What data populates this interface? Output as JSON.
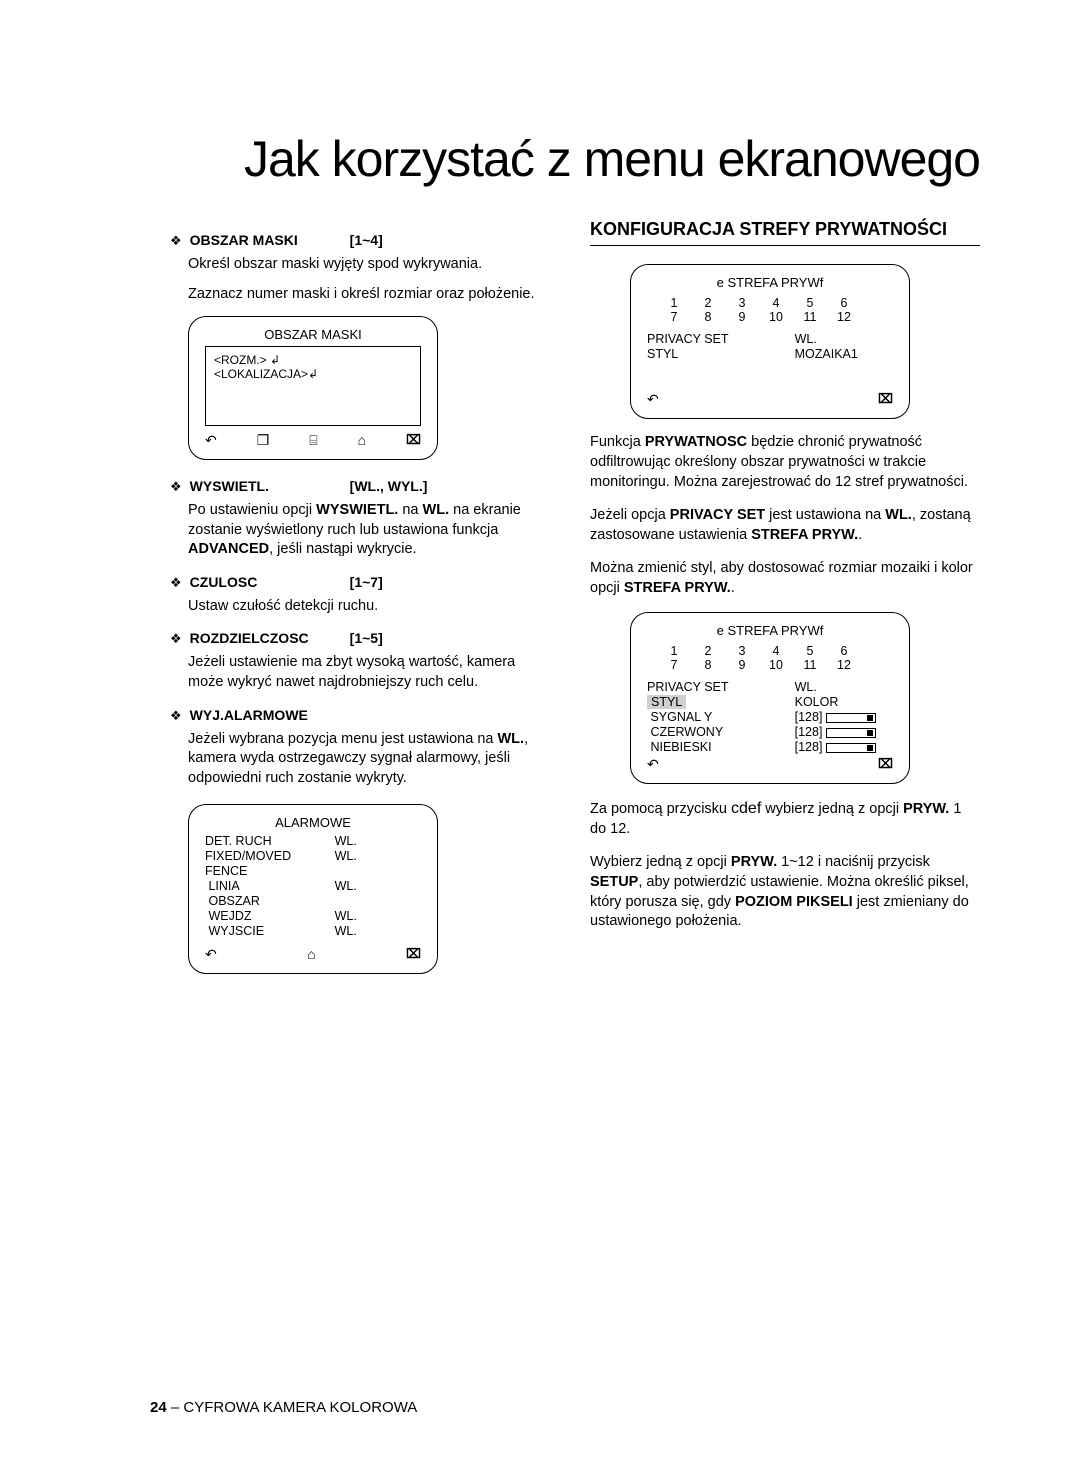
{
  "page_title": "Jak korzystać z menu ekranowego",
  "left": {
    "obszar_maski": {
      "label": "OBSZAR MASKI",
      "range": "[1~4]",
      "desc1": "Określ obszar maski wyjęty spod wykrywania.",
      "desc2": "Zaznacz numer maski i określ rozmiar oraz położenie."
    },
    "osd_mask": {
      "title": "OBSZAR MASKI",
      "line1": "<ROZM.> ↲",
      "line2": "<LOKALIZACJA>↲"
    },
    "wyswietl": {
      "label": "WYSWIETL.",
      "range": "[WL., WYL.]",
      "desc_a": "Po ustawieniu opcji ",
      "desc_bold1": "WYSWIETL.",
      "desc_mid1": " na ",
      "desc_bold2": "WL.",
      "desc_mid2": " na ekranie zostanie wyświetlony ruch lub ustawiona funkcja ",
      "desc_bold3": "ADVANCED",
      "desc_end": ", jeśli nastąpi wykrycie."
    },
    "czulosc": {
      "label": "CZULOSC",
      "range": "[1~7]",
      "desc": "Ustaw czułość detekcji ruchu."
    },
    "rozdz": {
      "label": "ROZDZIELCZOSC",
      "range": "[1~5]",
      "desc": "Jeżeli ustawienie ma zbyt wysoką wartość, kamera może wykryć nawet najdrobniejszy ruch celu."
    },
    "wyj_alarm": {
      "label": "WYJ.ALARMOWE",
      "desc_a": "Jeżeli wybrana pozycja menu jest ustawiona na ",
      "desc_bold": "WL.",
      "desc_b": ", kamera wyda ostrzegawczy sygnał alarmowy, jeśli odpowiedni ruch zostanie wykryty."
    },
    "osd_alarm": {
      "title": "ALARMOWE",
      "rows": [
        {
          "l": "DET. RUCH",
          "r": "WL."
        },
        {
          "l": "FIXED/MOVED",
          "r": "WL."
        },
        {
          "l": "FENCE",
          "r": ""
        },
        {
          "l": " LINIA",
          "r": "WL."
        },
        {
          "l": " OBSZAR",
          "r": ""
        },
        {
          "l": " WEJDZ",
          "r": "WL."
        },
        {
          "l": " WYJSCIE",
          "r": "WL."
        }
      ]
    }
  },
  "right": {
    "heading": "KONFIGURACJA STREFY PRYWATNOŚCI",
    "osd1": {
      "title": "e STREFA PRYWf",
      "nums": [
        "1",
        "2",
        "3",
        "4",
        "5",
        "6",
        "7",
        "8",
        "9",
        "10",
        "11",
        "12"
      ],
      "r1l": "PRIVACY SET",
      "r1r": "WL.",
      "r2l": "STYL",
      "r2r": "MOZAIKA1"
    },
    "p1_a": "Funkcja ",
    "p1_b1": "PRYWATNOSC",
    "p1_b": " będzie chronić prywatność odfiltrowując określony obszar prywatności w trakcie monitoringu. Można zarejestrować do 12 stref prywatności.",
    "p2_a": "Jeżeli opcja ",
    "p2_b1": "PRIVACY SET",
    "p2_mid": " jest ustawiona na ",
    "p2_b2": "WL.",
    "p2_mid2": ", zostaną zastosowane ustawienia ",
    "p2_b3": "STREFA PRYW.",
    "p2_end": ".",
    "p3_a": "Można zmienić styl, aby dostosować rozmiar mozaiki i kolor opcji ",
    "p3_b1": "STREFA PRYW.",
    "p3_end": ".",
    "osd2": {
      "title": "e STREFA PRYWf",
      "nums": [
        "1",
        "2",
        "3",
        "4",
        "5",
        "6",
        "7",
        "8",
        "9",
        "10",
        "11",
        "12"
      ],
      "r1l": "PRIVACY SET",
      "r1r": "WL.",
      "r2l": "STYL",
      "r2r": "KOLOR",
      "r3l": " SYGNAL Y",
      "r3v": "[128]",
      "r4l": " CZERWONY",
      "r4v": "[128]",
      "r5l": " NIEBIESKI",
      "r5v": "[128]"
    },
    "p4_a": "Za pomocą przycisku ",
    "p4_btn": "cdef",
    "p4_b": " wybierz jedną z opcji ",
    "p4_b1": "PRYW.",
    "p4_end": " 1 do 12.",
    "p5_a": "Wybierz jedną z opcji ",
    "p5_b1": "PRYW.",
    "p5_mid1": " 1~12 i naciśnij przycisk ",
    "p5_b2": "SETUP",
    "p5_mid2": ", aby potwierdzić ustawienie. Można określić piksel, który porusza się, gdy ",
    "p5_b3": "POZIOM PIKSELI",
    "p5_end": " jest zmieniany do ustawionego położenia."
  },
  "footer": {
    "page": "24",
    "sep": " – ",
    "text": "CYFROWA KAMERA KOLOROWA"
  },
  "icons": {
    "back": "↶",
    "sd": "❐",
    "save": "⌸",
    "home": "⌂",
    "close": "⌧"
  }
}
